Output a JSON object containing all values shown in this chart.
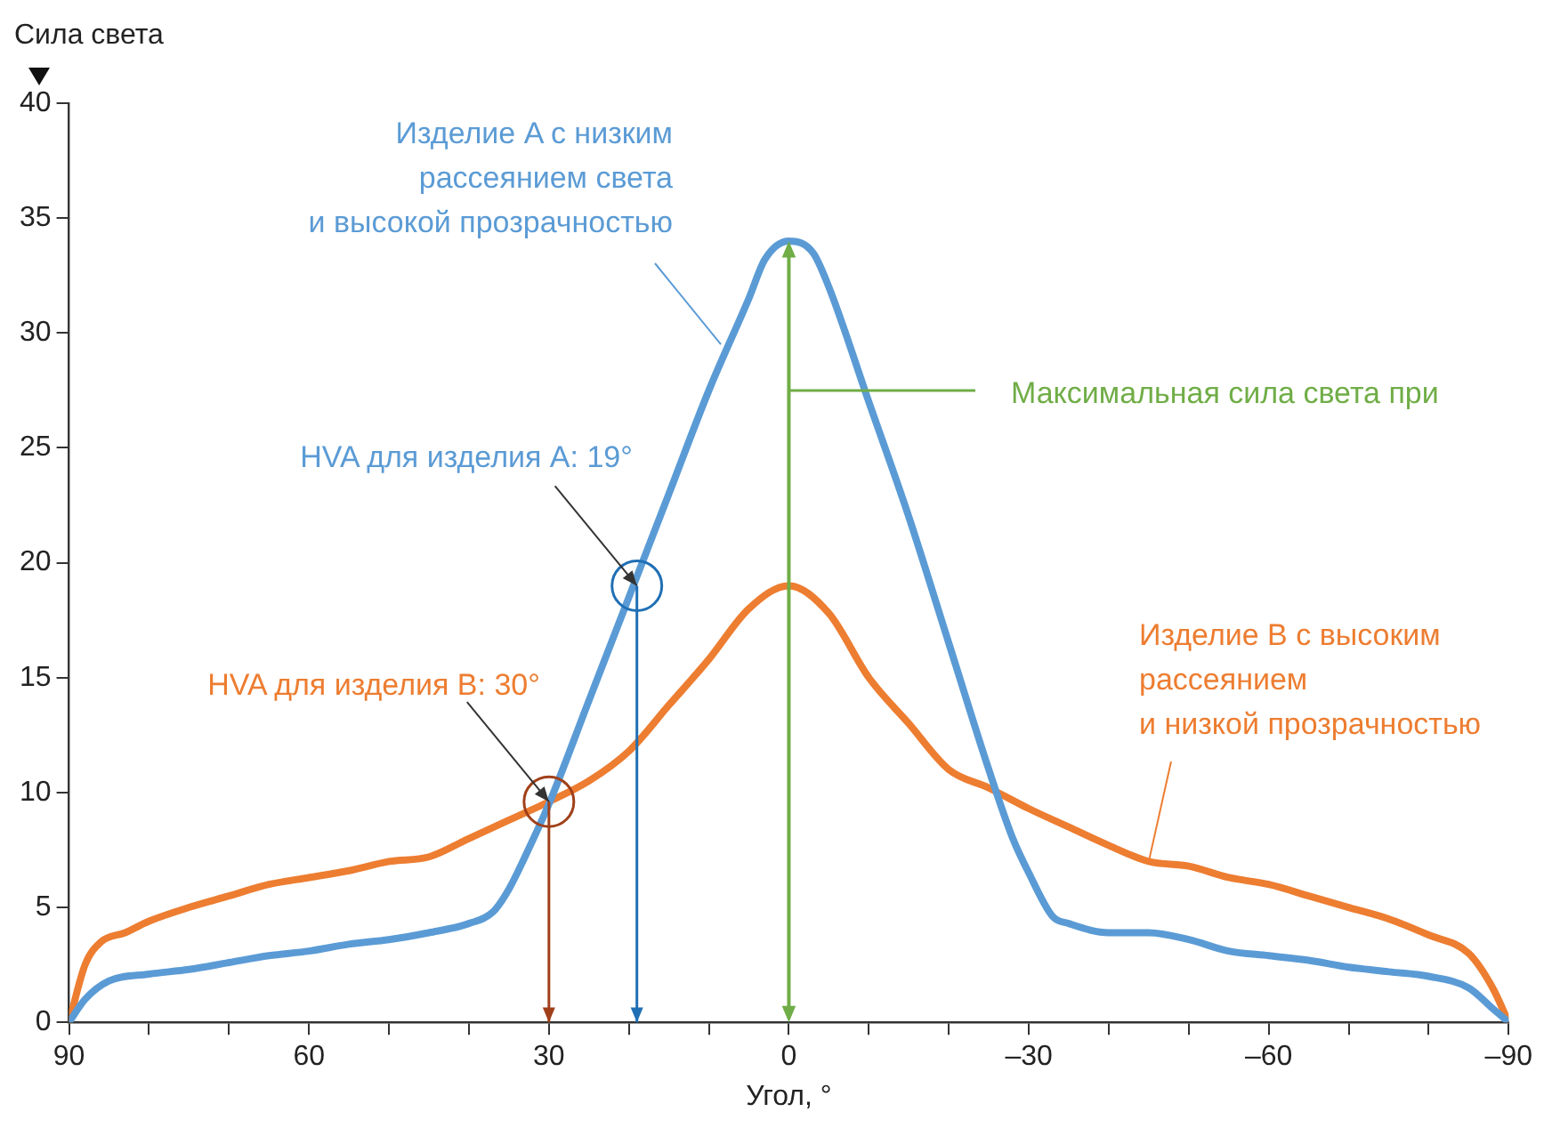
{
  "chart_data": {
    "type": "line",
    "ylabel": "Сила света",
    "xlabel": "Угол, °",
    "xlim": [
      90,
      -90
    ],
    "xticks": [
      90,
      {
        "value": 80,
        "label": null
      },
      {
        "value": 70,
        "label": null
      },
      60,
      {
        "value": 50,
        "label": null
      },
      {
        "value": 40,
        "label": null
      },
      30,
      {
        "value": 20,
        "label": null
      },
      {
        "value": 10,
        "label": null
      },
      0,
      {
        "value": -10,
        "label": null
      },
      {
        "value": -20,
        "label": null
      },
      {
        "value": -30,
        "label": "–30"
      },
      {
        "value": -40,
        "label": null
      },
      {
        "value": -50,
        "label": null
      },
      {
        "value": -60,
        "label": "–60"
      },
      {
        "value": -70,
        "label": null
      },
      {
        "value": -80,
        "label": null
      },
      {
        "value": -90,
        "label": "–90"
      }
    ],
    "ylim": [
      0,
      40
    ],
    "yticks": [
      0,
      5,
      10,
      15,
      20,
      25,
      30,
      35,
      40
    ],
    "legend": false,
    "ref_lines": [
      {
        "axis": "x",
        "value": 0,
        "color": "#70ad47"
      }
    ],
    "marker": "none",
    "line_style": "solid",
    "series": [
      {
        "color": "#5b9bd5",
        "x": [
          90,
          88,
          85,
          80,
          75,
          70,
          65,
          60,
          55,
          50,
          45,
          40,
          37,
          35,
          33,
          30,
          25,
          20,
          15,
          10,
          5,
          3,
          0,
          -3,
          -5,
          -10,
          -15,
          -20,
          -25,
          -28,
          -30,
          -33,
          -35,
          -40,
          -45,
          -50,
          -55,
          -60,
          -65,
          -70,
          -75,
          -80,
          -85,
          -88,
          -90
        ],
        "values": [
          0,
          1.0,
          1.8,
          2.1,
          2.3,
          2.6,
          2.9,
          3.1,
          3.4,
          3.6,
          3.9,
          4.3,
          4.8,
          5.8,
          7.2,
          9.5,
          14,
          18.5,
          23,
          27.5,
          31.5,
          33.2,
          34,
          33.5,
          32,
          27,
          22,
          16.5,
          11,
          8,
          6.5,
          4.6,
          4.3,
          3.9,
          3.9,
          3.6,
          3.1,
          2.9,
          2.7,
          2.4,
          2.2,
          2.0,
          1.5,
          0.6,
          0
        ]
      },
      {
        "color": "#ed7d31",
        "x": [
          90,
          88,
          86,
          83,
          80,
          75,
          70,
          65,
          60,
          55,
          50,
          45,
          40,
          35,
          30,
          25,
          20,
          15,
          10,
          5,
          0,
          -5,
          -10,
          -15,
          -20,
          -25,
          -30,
          -35,
          -40,
          -45,
          -50,
          -55,
          -60,
          -65,
          -70,
          -75,
          -80,
          -85,
          -88,
          -90
        ],
        "values": [
          0,
          2.5,
          3.5,
          3.9,
          4.4,
          5.0,
          5.5,
          6.0,
          6.3,
          6.6,
          7.0,
          7.2,
          8.0,
          8.8,
          9.6,
          10.5,
          11.8,
          13.8,
          15.8,
          18,
          19,
          17.8,
          15,
          13,
          11,
          10.2,
          9.3,
          8.5,
          7.7,
          7.0,
          6.8,
          6.3,
          6.0,
          5.5,
          5.0,
          4.5,
          3.8,
          3.0,
          1.5,
          0
        ]
      }
    ],
    "annotations": [
      {
        "text": "Изделие A с низким\nрассеянием света\nи высокой прозрачностью",
        "x": 8.5,
        "y": 29.5
      },
      {
        "text": "HVA для изделия A: 19°",
        "x": 19,
        "y": 19
      },
      {
        "text": "HVA для изделия B: 30°",
        "x": 30,
        "y": 9.6
      },
      {
        "text": "Максимальная сила света при",
        "x": 0,
        "y": 27.5
      },
      {
        "text": "Изделие B с высоким\nрассеянием\nи низкой прозрачностью",
        "x": -45,
        "y": 7.0
      }
    ]
  }
}
